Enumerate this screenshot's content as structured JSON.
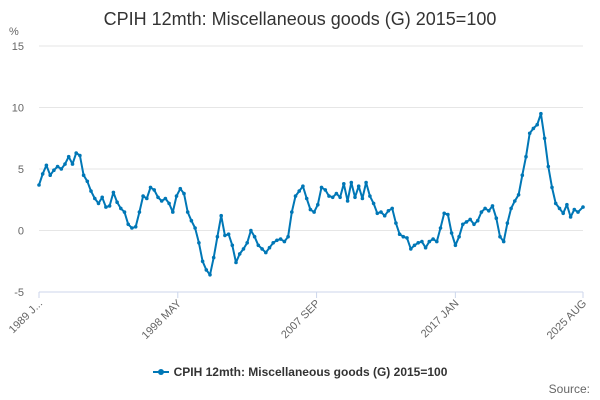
{
  "title": "CPIH 12mth: Miscellaneous goods (G) 2015=100",
  "source_label": "Source:",
  "colors": {
    "series": "#0077b6",
    "grid": "#e6e6e6",
    "axis": "#ccd6eb"
  },
  "chart_data": {
    "type": "line",
    "title": "CPIH 12mth: Miscellaneous goods (G) 2015=100",
    "ylabel": "%",
    "xlabel": "",
    "ylim": [
      -5,
      15
    ],
    "yticks": [
      "-5",
      "0",
      "5",
      "10",
      "15"
    ],
    "xlim": [
      "1989 JAN",
      "2025 AUG"
    ],
    "xticks": [
      "1989 J...",
      "1998 MAY",
      "2007 SEP",
      "2017 JAN",
      "2025 AUG"
    ],
    "grid": true,
    "legend": "bottom-center",
    "series": [
      {
        "name": "CPIH 12mth: Miscellaneous goods (G) 2015=100",
        "points": [
          [
            "1989-01",
            3.7
          ],
          [
            "1989-04",
            4.6
          ],
          [
            "1989-07",
            5.3
          ],
          [
            "1989-10",
            4.5
          ],
          [
            "1990-01",
            4.9
          ],
          [
            "1990-04",
            5.2
          ],
          [
            "1990-07",
            5.0
          ],
          [
            "1990-10",
            5.4
          ],
          [
            "1991-01",
            6.0
          ],
          [
            "1991-04",
            5.4
          ],
          [
            "1991-07",
            6.3
          ],
          [
            "1991-10",
            6.1
          ],
          [
            "1992-01",
            4.5
          ],
          [
            "1992-04",
            4.0
          ],
          [
            "1992-07",
            3.2
          ],
          [
            "1992-10",
            2.6
          ],
          [
            "1993-01",
            2.2
          ],
          [
            "1993-04",
            2.7
          ],
          [
            "1993-07",
            1.9
          ],
          [
            "1993-10",
            2.0
          ],
          [
            "1994-01",
            3.1
          ],
          [
            "1994-04",
            2.3
          ],
          [
            "1994-07",
            1.8
          ],
          [
            "1994-10",
            1.5
          ],
          [
            "1995-01",
            0.5
          ],
          [
            "1995-04",
            0.2
          ],
          [
            "1995-07",
            0.3
          ],
          [
            "1995-10",
            1.5
          ],
          [
            "1996-01",
            2.8
          ],
          [
            "1996-04",
            2.6
          ],
          [
            "1996-07",
            3.5
          ],
          [
            "1996-10",
            3.3
          ],
          [
            "1997-01",
            2.7
          ],
          [
            "1997-04",
            2.4
          ],
          [
            "1997-07",
            2.6
          ],
          [
            "1997-10",
            2.2
          ],
          [
            "1998-01",
            1.5
          ],
          [
            "1998-04",
            2.8
          ],
          [
            "1998-07",
            3.4
          ],
          [
            "1998-10",
            3.0
          ],
          [
            "1999-01",
            1.5
          ],
          [
            "1999-04",
            0.8
          ],
          [
            "1999-07",
            0.2
          ],
          [
            "1999-10",
            -1.0
          ],
          [
            "2000-01",
            -2.5
          ],
          [
            "2000-04",
            -3.2
          ],
          [
            "2000-07",
            -3.6
          ],
          [
            "2000-10",
            -2.2
          ],
          [
            "2001-01",
            -0.5
          ],
          [
            "2001-04",
            1.2
          ],
          [
            "2001-07",
            -0.4
          ],
          [
            "2001-10",
            -0.3
          ],
          [
            "2002-01",
            -1.2
          ],
          [
            "2002-04",
            -2.6
          ],
          [
            "2002-07",
            -1.9
          ],
          [
            "2002-10",
            -1.5
          ],
          [
            "2003-01",
            -1.0
          ],
          [
            "2003-04",
            0.0
          ],
          [
            "2003-07",
            -0.5
          ],
          [
            "2003-10",
            -1.2
          ],
          [
            "2004-01",
            -1.5
          ],
          [
            "2004-04",
            -1.8
          ],
          [
            "2004-07",
            -1.4
          ],
          [
            "2004-10",
            -1.0
          ],
          [
            "2005-01",
            -0.8
          ],
          [
            "2005-04",
            -0.7
          ],
          [
            "2005-07",
            -0.9
          ],
          [
            "2005-10",
            -0.5
          ],
          [
            "2006-01",
            1.5
          ],
          [
            "2006-04",
            2.8
          ],
          [
            "2006-07",
            3.2
          ],
          [
            "2006-10",
            3.6
          ],
          [
            "2007-01",
            2.6
          ],
          [
            "2007-04",
            1.7
          ],
          [
            "2007-07",
            1.5
          ],
          [
            "2007-10",
            2.1
          ],
          [
            "2008-01",
            3.5
          ],
          [
            "2008-04",
            3.3
          ],
          [
            "2008-07",
            2.8
          ],
          [
            "2008-10",
            2.7
          ],
          [
            "2009-01",
            3.0
          ],
          [
            "2009-04",
            2.7
          ],
          [
            "2009-07",
            3.8
          ],
          [
            "2009-10",
            2.4
          ],
          [
            "2010-01",
            3.9
          ],
          [
            "2010-04",
            2.7
          ],
          [
            "2010-07",
            3.6
          ],
          [
            "2010-10",
            2.6
          ],
          [
            "2011-01",
            3.9
          ],
          [
            "2011-04",
            2.8
          ],
          [
            "2011-07",
            2.2
          ],
          [
            "2011-10",
            1.4
          ],
          [
            "2012-01",
            1.5
          ],
          [
            "2012-04",
            1.2
          ],
          [
            "2012-07",
            1.6
          ],
          [
            "2012-10",
            1.8
          ],
          [
            "2013-01",
            0.6
          ],
          [
            "2013-04",
            -0.3
          ],
          [
            "2013-07",
            -0.5
          ],
          [
            "2013-10",
            -0.6
          ],
          [
            "2014-01",
            -1.5
          ],
          [
            "2014-04",
            -1.2
          ],
          [
            "2014-07",
            -1.0
          ],
          [
            "2014-10",
            -0.9
          ],
          [
            "2015-01",
            -1.4
          ],
          [
            "2015-04",
            -0.9
          ],
          [
            "2015-07",
            -0.7
          ],
          [
            "2015-10",
            -0.9
          ],
          [
            "2016-01",
            0.2
          ],
          [
            "2016-04",
            1.4
          ],
          [
            "2016-07",
            1.3
          ],
          [
            "2016-10",
            -0.2
          ],
          [
            "2017-01",
            -1.2
          ],
          [
            "2017-04",
            -0.5
          ],
          [
            "2017-07",
            0.5
          ],
          [
            "2017-10",
            0.7
          ],
          [
            "2018-01",
            0.9
          ],
          [
            "2018-04",
            0.5
          ],
          [
            "2018-07",
            0.8
          ],
          [
            "2018-10",
            1.5
          ],
          [
            "2019-01",
            1.8
          ],
          [
            "2019-04",
            1.6
          ],
          [
            "2019-07",
            2.0
          ],
          [
            "2019-10",
            1.0
          ],
          [
            "2020-01",
            -0.5
          ],
          [
            "2020-04",
            -0.9
          ],
          [
            "2020-07",
            0.6
          ],
          [
            "2020-10",
            1.8
          ],
          [
            "2021-01",
            2.4
          ],
          [
            "2021-04",
            2.9
          ],
          [
            "2021-07",
            4.5
          ],
          [
            "2021-10",
            6.0
          ],
          [
            "2022-01",
            7.9
          ],
          [
            "2022-04",
            8.3
          ],
          [
            "2022-07",
            8.6
          ],
          [
            "2022-10",
            9.5
          ],
          [
            "2023-01",
            7.5
          ],
          [
            "2023-04",
            5.2
          ],
          [
            "2023-07",
            3.5
          ],
          [
            "2023-10",
            2.2
          ],
          [
            "2024-01",
            1.8
          ],
          [
            "2024-04",
            1.4
          ],
          [
            "2024-07",
            2.1
          ],
          [
            "2024-10",
            1.1
          ],
          [
            "2025-01",
            1.7
          ],
          [
            "2025-04",
            1.5
          ],
          [
            "2025-08",
            1.9
          ]
        ]
      }
    ]
  }
}
